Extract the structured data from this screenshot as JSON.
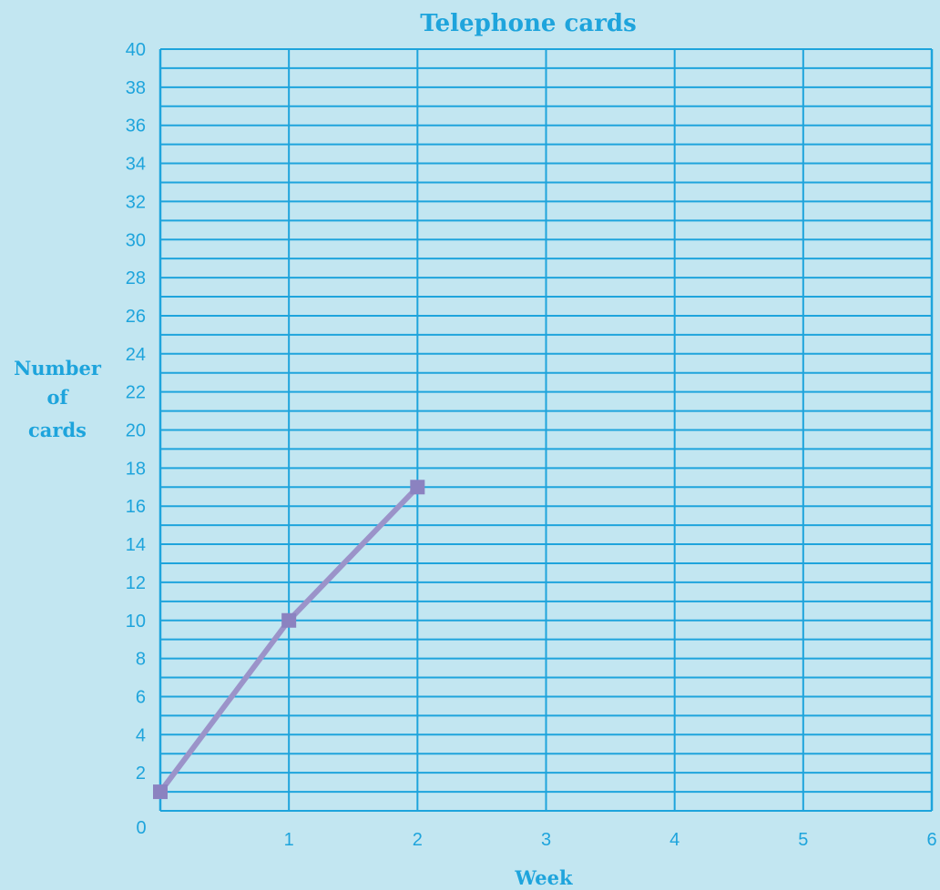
{
  "chart_data": {
    "type": "line",
    "title": "Telephone cards",
    "xlabel": "Week",
    "ylabel": [
      "Number",
      "of",
      "cards"
    ],
    "x": [
      0,
      1,
      2
    ],
    "series": [
      {
        "x": [
          0,
          1,
          2
        ],
        "values": [
          1,
          10,
          17
        ]
      }
    ],
    "xlim": [
      0,
      6
    ],
    "ylim": [
      0,
      40
    ],
    "x_ticks": [
      "0",
      "1",
      "2",
      "3",
      "4",
      "5",
      "6"
    ],
    "y_ticks": [
      "0",
      "2",
      "4",
      "6",
      "8",
      "10",
      "12",
      "14",
      "16",
      "18",
      "20",
      "22",
      "24",
      "26",
      "28",
      "30",
      "32",
      "34",
      "36",
      "38",
      "40"
    ],
    "grid": true,
    "colors": {
      "background": "#c2e6f1",
      "grid": "#1ea4dc",
      "text": "#1ea4dc",
      "line": "#9b93c9",
      "marker": "#8b82c0"
    }
  }
}
